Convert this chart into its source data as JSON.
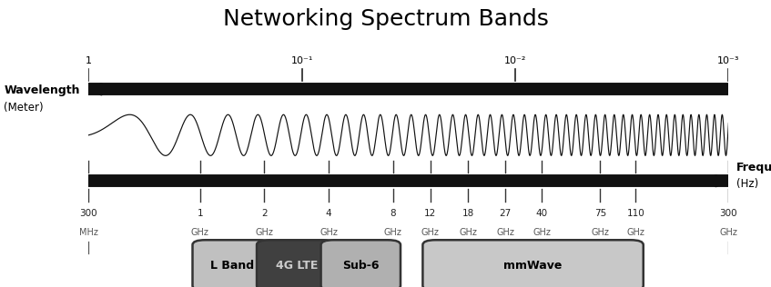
{
  "title": "Networking Spectrum Bands",
  "title_fontsize": 18,
  "freq_ticks_labels": [
    "300\nMHz",
    "1\nGHz",
    "2\nGHz",
    "4\nGHz",
    "8\nGHz",
    "12\nGHz",
    "18\nGHz",
    "27\nGHz",
    "40\nGHz",
    "75\nGHz",
    "110\nGHz",
    "300\nGHz"
  ],
  "freq_ticks_hz": [
    300000000.0,
    1000000000.0,
    2000000000.0,
    4000000000.0,
    8000000000.0,
    12000000000.0,
    18000000000.0,
    27000000000.0,
    40000000000.0,
    75000000000.0,
    110000000000.0,
    300000000000.0
  ],
  "wave_ticks_labels": [
    "1",
    "10⁻¹",
    "10⁻²",
    "10⁻³"
  ],
  "wave_ticks_hz": [
    300000000.0,
    3000000000.0,
    30000000000.0,
    300000000000.0
  ],
  "bands": [
    {
      "label": "L Band",
      "fmin": 1000000000.0,
      "fmax": 2000000000.0,
      "color": "#c0c0c0",
      "text_color": "#000000"
    },
    {
      "label": "4G LTE",
      "fmin": 2000000000.0,
      "fmax": 4000000000.0,
      "color": "#404040",
      "text_color": "#cccccc"
    },
    {
      "label": "Sub-6",
      "fmin": 4000000000.0,
      "fmax": 8000000000.0,
      "color": "#b0b0b0",
      "text_color": "#000000"
    },
    {
      "label": "mmWave",
      "fmin": 12000000000.0,
      "fmax": 110000000000.0,
      "color": "#c8c8c8",
      "text_color": "#000000"
    }
  ],
  "arrow_color": "#111111",
  "wave_color": "#111111",
  "freq_min": 300000000.0,
  "freq_max": 300000000000.0
}
